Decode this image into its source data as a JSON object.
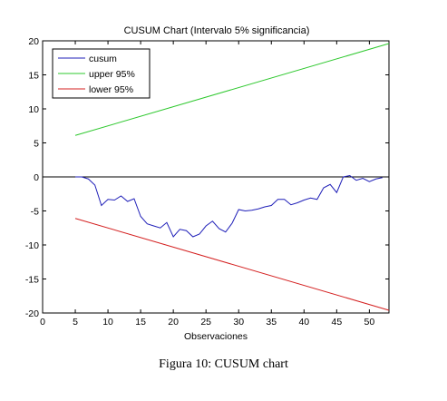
{
  "chart_data": {
    "type": "line",
    "title": "CUSUM Chart (Intervalo 5% significancia)",
    "xlabel": "Observaciones",
    "ylabel": "",
    "xlim": [
      0,
      53
    ],
    "ylim": [
      -20,
      20
    ],
    "xticks": [
      0,
      5,
      10,
      15,
      20,
      25,
      30,
      35,
      40,
      45,
      50
    ],
    "yticks": [
      20,
      15,
      10,
      5,
      0,
      -5,
      -10,
      -15,
      -20
    ],
    "zero_line": true,
    "grid": false,
    "legend": "top-left",
    "series": [
      {
        "name": "cusum",
        "color": "#1f1fb8",
        "x": [
          5,
          6,
          7,
          8,
          9,
          10,
          11,
          12,
          13,
          14,
          15,
          16,
          17,
          18,
          19,
          20,
          21,
          22,
          23,
          24,
          25,
          26,
          27,
          28,
          29,
          30,
          31,
          32,
          33,
          34,
          35,
          36,
          37,
          38,
          39,
          40,
          41,
          42,
          43,
          44,
          45,
          46,
          47,
          48,
          49,
          50,
          51,
          52
        ],
        "y": [
          0,
          0,
          -0.3,
          -1.2,
          -4.2,
          -3.3,
          -3.4,
          -2.8,
          -3.6,
          -3.2,
          -5.8,
          -6.9,
          -7.2,
          -7.5,
          -6.7,
          -8.8,
          -7.7,
          -7.9,
          -8.8,
          -8.4,
          -7.2,
          -6.5,
          -7.6,
          -8.1,
          -6.8,
          -4.8,
          -5.0,
          -4.9,
          -4.7,
          -4.4,
          -4.2,
          -3.3,
          -3.3,
          -4.1,
          -3.8,
          -3.4,
          -3.1,
          -3.3,
          -1.6,
          -1.1,
          -2.3,
          0,
          0.2,
          -0.5,
          -0.2,
          -0.7,
          -0.3,
          -0.1
        ]
      },
      {
        "name": "upper 95%",
        "color": "#2ec82e",
        "x": [
          5,
          53
        ],
        "y": [
          6.1,
          19.6
        ]
      },
      {
        "name": "lower 95%",
        "color": "#d42020",
        "x": [
          5,
          53
        ],
        "y": [
          -6.1,
          -19.6
        ]
      }
    ]
  },
  "caption": "Figura 10: CUSUM chart"
}
